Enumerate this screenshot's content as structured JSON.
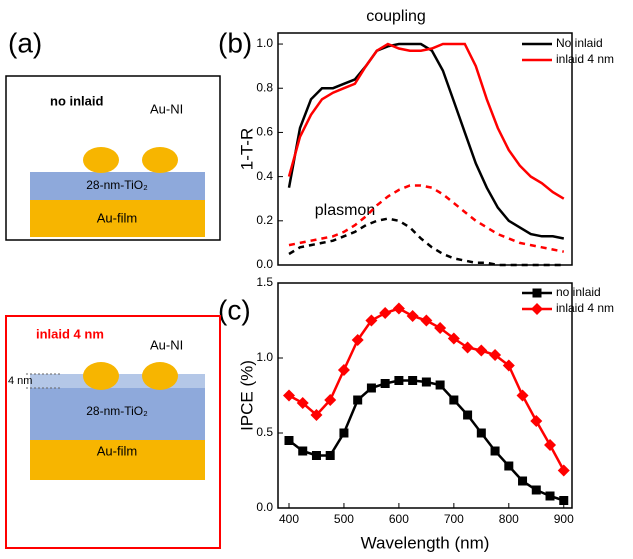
{
  "panels": {
    "a": "(a)",
    "b": "(b)",
    "c": "(c)"
  },
  "schematics": [
    {
      "title": "no inlaid",
      "particles": "Au-NI",
      "layer": "28-nm-TiO₂",
      "film": "Au-film"
    },
    {
      "title": "inlaid 4 nm",
      "particles": "Au-NI",
      "inlay": "4 nm",
      "layer": "28-nm-TiO₂",
      "film": "Au-film"
    }
  ],
  "chart_data": [
    {
      "type": "line",
      "ylabel": "1-T-R",
      "annotations": [
        "coupling",
        "plasmon"
      ],
      "xlim": [
        380,
        915
      ],
      "ylim": [
        0,
        1.05
      ],
      "yticks": [
        {
          "value": 0,
          "label": "0.0"
        },
        0.2,
        0.4,
        0.6,
        0.8,
        {
          "value": 1,
          "label": "1.0"
        }
      ],
      "legend": "upper right",
      "x": [
        400,
        420,
        440,
        460,
        480,
        500,
        520,
        540,
        560,
        580,
        600,
        620,
        640,
        660,
        680,
        700,
        720,
        740,
        760,
        780,
        800,
        820,
        840,
        860,
        880,
        900
      ],
      "series": [
        {
          "name": "No inlaid",
          "color": "#000000",
          "values": [
            0.35,
            0.62,
            0.75,
            0.8,
            0.8,
            0.82,
            0.84,
            0.9,
            0.97,
            0.99,
            1.0,
            1.0,
            1.0,
            0.97,
            0.88,
            0.74,
            0.6,
            0.46,
            0.35,
            0.26,
            0.2,
            0.17,
            0.14,
            0.13,
            0.13,
            0.12
          ]
        },
        {
          "name": "inlaid 4 nm",
          "color": "#ff0000",
          "values": [
            0.4,
            0.58,
            0.68,
            0.75,
            0.78,
            0.8,
            0.82,
            0.9,
            0.97,
            1.0,
            0.98,
            0.97,
            0.97,
            0.98,
            1.0,
            1.0,
            1.0,
            0.9,
            0.75,
            0.62,
            0.52,
            0.45,
            0.4,
            0.37,
            0.33,
            0.3
          ]
        },
        {
          "color": "#000000",
          "dash": true,
          "values": [
            0.05,
            0.08,
            0.09,
            0.1,
            0.11,
            0.13,
            0.15,
            0.18,
            0.2,
            0.21,
            0.2,
            0.17,
            0.12,
            0.08,
            0.05,
            0.03,
            0.02,
            0.01,
            0.01,
            0.0,
            0.0,
            0.0,
            0.0,
            0.0,
            0.0,
            0.0
          ]
        },
        {
          "color": "#ff0000",
          "dash": true,
          "values": [
            0.09,
            0.1,
            0.11,
            0.12,
            0.13,
            0.15,
            0.18,
            0.22,
            0.27,
            0.31,
            0.34,
            0.36,
            0.36,
            0.35,
            0.32,
            0.28,
            0.24,
            0.2,
            0.17,
            0.14,
            0.12,
            0.1,
            0.09,
            0.08,
            0.07,
            0.06
          ]
        }
      ]
    },
    {
      "type": "line",
      "xlabel": "Wavelength (nm)",
      "ylabel": "IPCE (%)",
      "xlim": [
        380,
        915
      ],
      "ylim": [
        0,
        1.5
      ],
      "xticks": [
        400,
        500,
        600,
        700,
        800,
        900
      ],
      "yticks": [
        {
          "value": 0,
          "label": "0.0"
        },
        0.5,
        {
          "value": 1,
          "label": "1.0"
        },
        1.5
      ],
      "legend": "upper right",
      "x": [
        400,
        425,
        450,
        475,
        500,
        525,
        550,
        575,
        600,
        625,
        650,
        675,
        700,
        725,
        750,
        775,
        800,
        825,
        850,
        875,
        900
      ],
      "series": [
        {
          "name": "no inlaid",
          "color": "#000000",
          "marker": "square",
          "values": [
            0.45,
            0.38,
            0.35,
            0.35,
            0.5,
            0.72,
            0.8,
            0.83,
            0.85,
            0.85,
            0.84,
            0.82,
            0.72,
            0.62,
            0.5,
            0.38,
            0.28,
            0.18,
            0.12,
            0.08,
            0.05
          ]
        },
        {
          "name": "inlaid 4 nm",
          "color": "#ff0000",
          "marker": "diamond",
          "values": [
            0.75,
            0.7,
            0.62,
            0.72,
            0.92,
            1.12,
            1.25,
            1.3,
            1.33,
            1.28,
            1.25,
            1.2,
            1.13,
            1.07,
            1.05,
            1.02,
            0.95,
            0.75,
            0.58,
            0.42,
            0.25
          ]
        }
      ]
    }
  ]
}
